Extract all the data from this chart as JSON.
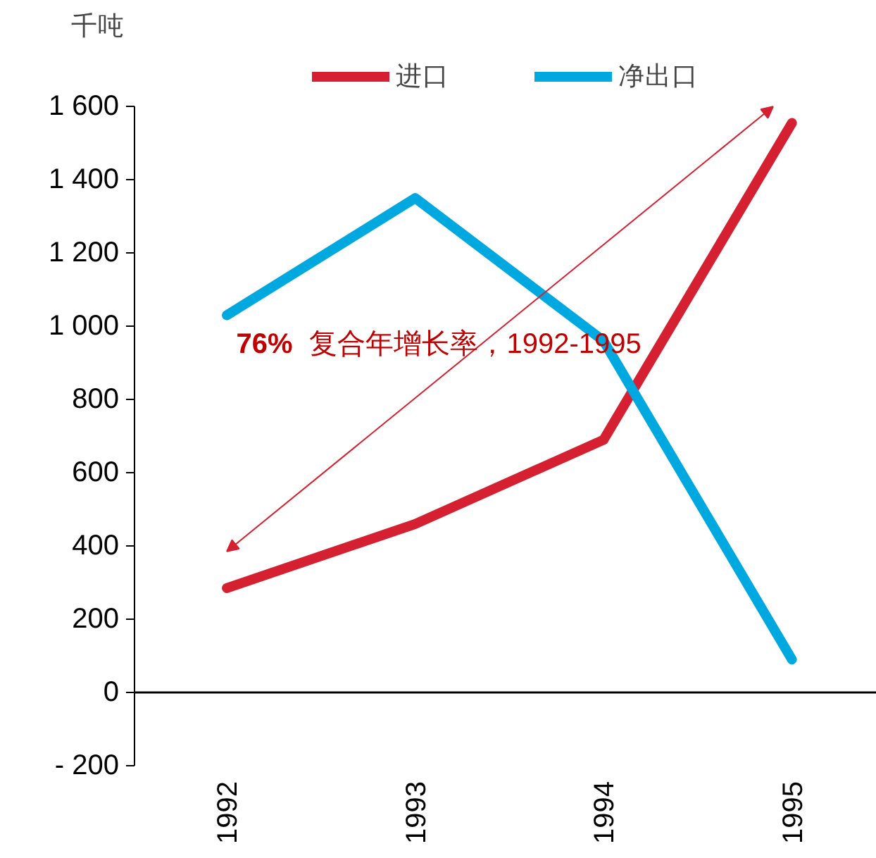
{
  "chart_data": {
    "type": "line",
    "ylabel": "千吨",
    "categories": [
      "1992",
      "1993",
      "1994",
      "1995"
    ],
    "series": [
      {
        "name": "进口",
        "color": "#d42030",
        "values": [
          285,
          460,
          690,
          1555
        ]
      },
      {
        "name": "净出口",
        "color": "#00a8e0",
        "values": [
          1030,
          1350,
          960,
          90
        ]
      }
    ],
    "ylim": [
      -200,
      1600
    ],
    "yticks": [
      {
        "value": -200,
        "label": "- 200"
      },
      0,
      200,
      400,
      600,
      800,
      {
        "value": 1000,
        "label": "1 000"
      },
      {
        "value": 1200,
        "label": "1 200"
      },
      {
        "value": 1400,
        "label": "1 400"
      },
      {
        "value": 1600,
        "label": "1 600"
      }
    ],
    "annotations": [
      "76% 复合年增长率，1992-1995"
    ],
    "ref_lines": [
      {
        "axis": "y",
        "value": 0,
        "color": "#000000",
        "line_style": "solid"
      }
    ],
    "grid": false,
    "legend": "top",
    "marker": "none",
    "line_style": "solid"
  }
}
